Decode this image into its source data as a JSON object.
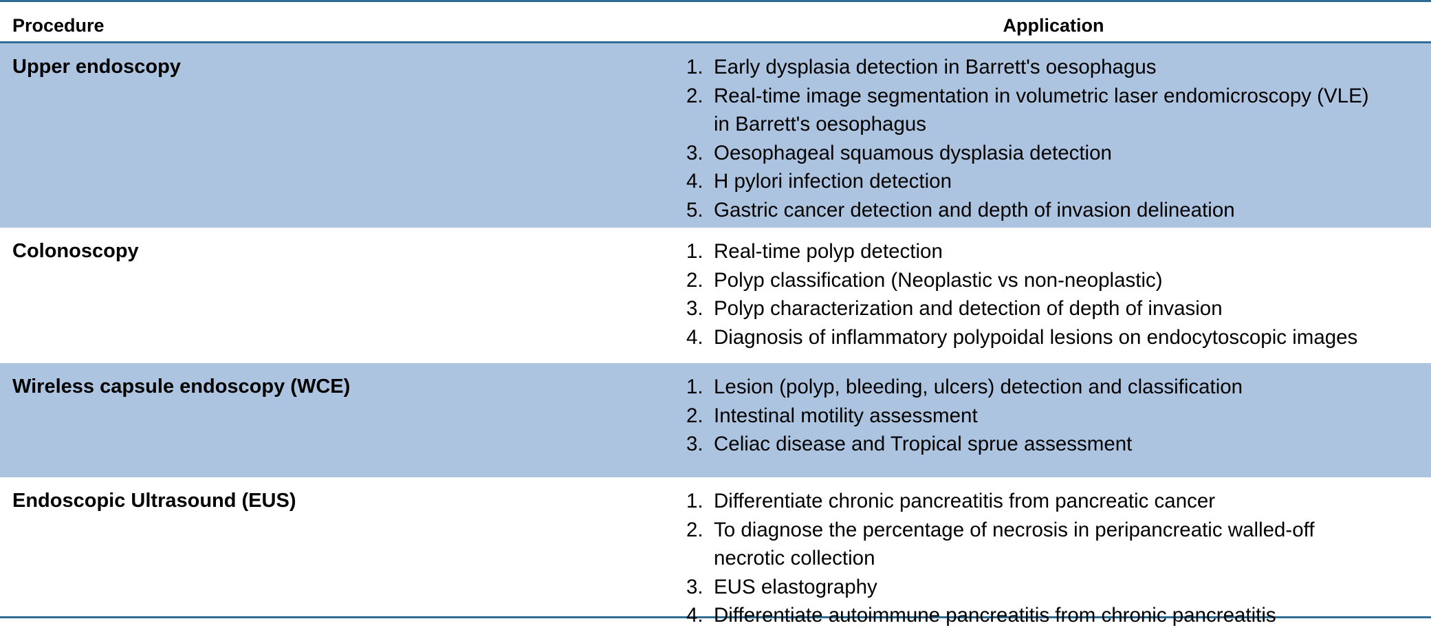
{
  "table": {
    "headers": {
      "procedure": "Procedure",
      "application": "Application"
    },
    "rows": [
      {
        "procedure": "Upper endoscopy",
        "applications": [
          {
            "num": "1.",
            "lines": [
              "Early dysplasia detection in Barrett's oesophagus"
            ]
          },
          {
            "num": "2.",
            "lines": [
              "Real-time image segmentation in volumetric laser endomicroscopy (VLE)",
              "in Barrett's oesophagus"
            ]
          },
          {
            "num": "3.",
            "lines": [
              "Oesophageal squamous dysplasia detection"
            ]
          },
          {
            "num": "4.",
            "lines": [
              "H pylori infection detection"
            ]
          },
          {
            "num": "5.",
            "lines": [
              "Gastric cancer detection and depth of invasion delineation"
            ]
          }
        ]
      },
      {
        "procedure": "Colonoscopy",
        "applications": [
          {
            "num": "1.",
            "lines": [
              "Real-time polyp detection"
            ]
          },
          {
            "num": "2.",
            "lines": [
              "Polyp classification (Neoplastic vs non-neoplastic)"
            ]
          },
          {
            "num": "3.",
            "lines": [
              "Polyp characterization and detection of depth of invasion"
            ]
          },
          {
            "num": "4.",
            "lines": [
              "Diagnosis of inflammatory polypoidal lesions on endocytoscopic images"
            ]
          }
        ]
      },
      {
        "procedure": "Wireless capsule endoscopy (WCE)",
        "applications": [
          {
            "num": "1.",
            "lines": [
              "Lesion (polyp, bleeding, ulcers) detection and classification"
            ]
          },
          {
            "num": "2.",
            "lines": [
              "Intestinal motility assessment"
            ]
          },
          {
            "num": "3.",
            "lines": [
              "Celiac disease and Tropical sprue assessment"
            ]
          }
        ]
      },
      {
        "procedure": "Endoscopic Ultrasound (EUS)",
        "applications": [
          {
            "num": "1.",
            "lines": [
              "Differentiate chronic pancreatitis from pancreatic cancer"
            ]
          },
          {
            "num": "2.",
            "lines": [
              "To diagnose the percentage of necrosis in peripancreatic walled-off",
              "necrotic collection"
            ]
          },
          {
            "num": "3.",
            "lines": [
              "EUS elastography"
            ]
          },
          {
            "num": "4.",
            "lines": [
              "Differentiate autoimmune pancreatitis from chronic pancreatitis"
            ]
          }
        ]
      }
    ],
    "colors": {
      "shaded_row": "#adc4e1",
      "rule": "#2f6d93"
    }
  }
}
